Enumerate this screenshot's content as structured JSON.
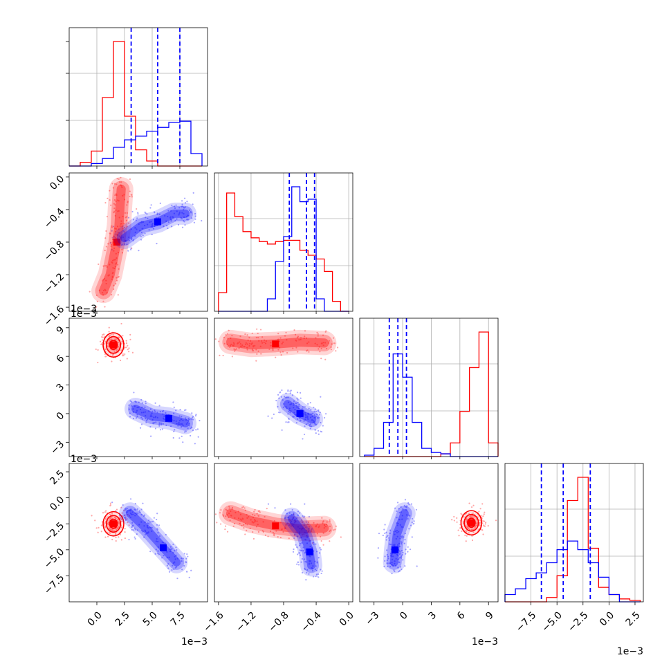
{
  "chart_data": {
    "type": "corner",
    "parameters": 4,
    "series": [
      {
        "name": "",
        "color": "#ff0000"
      },
      {
        "name": "",
        "color": "#0000ff"
      }
    ],
    "grid": true,
    "offset_labels": [
      "1e−3",
      "1e−3",
      "1e−3",
      "1e−3",
      "1e−3",
      "1e−3"
    ],
    "axes": [
      {
        "range": [
          -2.5,
          10
        ],
        "ticks": [
          0,
          2.5,
          5,
          7.5
        ],
        "tick_labels": [
          "0.0",
          "2.5",
          "5.0",
          "7.5"
        ]
      },
      {
        "range": [
          -1.65,
          0.05
        ],
        "ticks": [
          -1.6,
          -1.2,
          -0.8,
          -0.4,
          0
        ],
        "tick_labels": [
          "−1.6",
          "−1.2",
          "−0.8",
          "−0.4",
          "0.0"
        ],
        "y_tick_labels": [
          "−1.6",
          "−1.2",
          "−0.8",
          "−0.4",
          "0.0"
        ]
      },
      {
        "range": [
          -4.5,
          10
        ],
        "ticks": [
          -3,
          0,
          3,
          6,
          9
        ],
        "tick_labels": [
          "−3",
          "0",
          "3",
          "6",
          "9"
        ]
      },
      {
        "range": [
          -10,
          3.3
        ],
        "ticks": [
          -7.5,
          -5,
          -2.5,
          0,
          2.5
        ],
        "tick_labels": [
          "−7.5",
          "−5.0",
          "−2.5",
          "0.0",
          "2.5"
        ]
      }
    ],
    "quantile_lines": [
      [
        3.1,
        5.5,
        7.5
      ],
      [
        -0.73,
        -0.52,
        -0.42
      ],
      [
        -1.4,
        -0.5,
        0.4
      ],
      [
        -6.5,
        -4.4,
        -1.8
      ]
    ],
    "histograms": [
      {
        "edges": [
          -2.5,
          -1.5,
          -0.5,
          0.5,
          1.5,
          2.5,
          3.5,
          4.5,
          5.5,
          6.5,
          7.5,
          8.5,
          9.5
        ],
        "red": [
          0.0,
          0.03,
          0.12,
          0.55,
          1.0,
          0.4,
          0.13,
          0.04,
          0.0,
          0.0,
          0.0,
          0.0
        ],
        "blue": [
          0.0,
          0.0,
          0.02,
          0.06,
          0.15,
          0.21,
          0.24,
          0.28,
          0.31,
          0.35,
          0.36,
          0.1
        ]
      },
      {
        "edges": [
          -1.6,
          -1.5,
          -1.4,
          -1.3,
          -1.2,
          -1.1,
          -1.0,
          -0.9,
          -0.8,
          -0.7,
          -0.6,
          -0.5,
          -0.4,
          -0.3,
          -0.2,
          -0.1,
          0.0
        ],
        "red": [
          0.15,
          0.95,
          0.76,
          0.64,
          0.59,
          0.56,
          0.54,
          0.56,
          0.57,
          0.57,
          0.49,
          0.45,
          0.42,
          0.32,
          0.08,
          0.0
        ],
        "blue": [
          0.0,
          0.0,
          0.0,
          0.0,
          0.0,
          0.0,
          0.1,
          0.4,
          0.6,
          1.0,
          0.88,
          0.9,
          0.1,
          0.0,
          0.0,
          0.0
        ]
      },
      {
        "edges": [
          -4,
          -3,
          -2,
          -1,
          0,
          1,
          2,
          3,
          4,
          5,
          6,
          7,
          8,
          9,
          10
        ],
        "red": [
          0.0,
          0.0,
          0.0,
          0.0,
          0.0,
          0.0,
          0.0,
          0.0,
          0.02,
          0.1,
          0.33,
          0.65,
          0.91,
          0.1
        ],
        "blue": [
          0.01,
          0.06,
          0.25,
          0.75,
          0.58,
          0.25,
          0.06,
          0.03,
          0.02,
          0.0,
          0.0,
          0.0,
          0.0,
          0.0
        ]
      },
      {
        "edges": [
          -10,
          -9,
          -8,
          -7,
          -6,
          -5,
          -4,
          -3,
          -2,
          -1,
          0,
          1,
          2,
          3
        ],
        "red": [
          0.0,
          0.0,
          0.0,
          0.0,
          0.03,
          0.18,
          0.7,
          0.86,
          0.37,
          0.1,
          0.05,
          0.02,
          0.01
        ],
        "blue": [
          0.05,
          0.09,
          0.16,
          0.2,
          0.27,
          0.36,
          0.42,
          0.36,
          0.27,
          0.17,
          0.05,
          0.0,
          0.0
        ]
      }
    ],
    "joint": [
      {
        "x": 0,
        "y": 1,
        "red": [
          [
            0.6,
            -1.4
          ],
          [
            1.2,
            -1.2
          ],
          [
            1.5,
            -1.0
          ],
          [
            1.8,
            -0.8
          ],
          [
            2.0,
            -0.6
          ],
          [
            2.1,
            -0.35
          ],
          [
            2.2,
            -0.15
          ]
        ],
        "blue": [
          [
            2.5,
            -0.75
          ],
          [
            4.0,
            -0.6
          ],
          [
            5.5,
            -0.55
          ],
          [
            7.0,
            -0.45
          ],
          [
            8.0,
            -0.45
          ]
        ]
      },
      {
        "x": 0,
        "y": 2,
        "red": [
          [
            1.5,
            7.2
          ]
        ],
        "blue": [
          [
            3.5,
            0.5
          ],
          [
            5.0,
            -0.3
          ],
          [
            6.5,
            -0.5
          ],
          [
            8.0,
            -1.0
          ]
        ]
      },
      {
        "x": 1,
        "y": 2,
        "red": [
          [
            -1.45,
            7.5
          ],
          [
            -1.2,
            7.2
          ],
          [
            -0.9,
            7.3
          ],
          [
            -0.6,
            7.5
          ],
          [
            -0.3,
            7.4
          ]
        ],
        "blue": [
          [
            -0.75,
            1.0
          ],
          [
            -0.6,
            0.0
          ],
          [
            -0.45,
            -0.6
          ]
        ]
      },
      {
        "x": 0,
        "y": 3,
        "red": [
          [
            1.5,
            -2.5
          ]
        ],
        "blue": [
          [
            3.0,
            -1.5
          ],
          [
            4.5,
            -3.0
          ],
          [
            6.0,
            -4.8
          ],
          [
            7.2,
            -6.2
          ]
        ]
      },
      {
        "x": 1,
        "y": 3,
        "red": [
          [
            -1.45,
            -1.5
          ],
          [
            -1.2,
            -2.2
          ],
          [
            -0.9,
            -2.7
          ],
          [
            -0.6,
            -3.0
          ],
          [
            -0.3,
            -2.9
          ]
        ],
        "blue": [
          [
            -0.7,
            -2.0
          ],
          [
            -0.55,
            -3.5
          ],
          [
            -0.48,
            -5.2
          ],
          [
            -0.46,
            -6.5
          ]
        ]
      },
      {
        "x": 2,
        "y": 3,
        "red": [
          [
            7.2,
            -2.4
          ]
        ],
        "blue": [
          [
            0.2,
            -1.5
          ],
          [
            -0.6,
            -3.5
          ],
          [
            -0.8,
            -5.0
          ],
          [
            -0.9,
            -6.2
          ]
        ]
      }
    ]
  }
}
